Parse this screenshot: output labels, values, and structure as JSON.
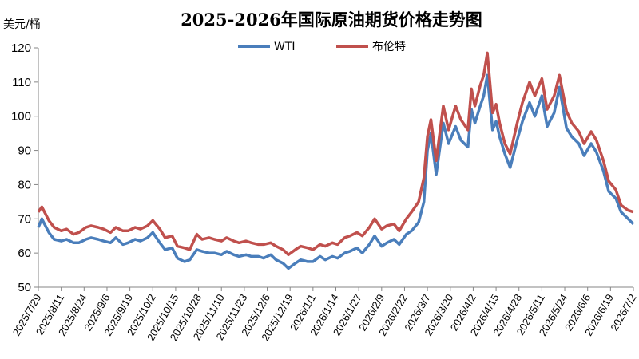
{
  "chart_data": {
    "type": "line",
    "title": "2025-2026年国际原油期货价格走势图",
    "ylabel": "美元/桶",
    "xlabel": "",
    "ylim": [
      50,
      120
    ],
    "yticks": [
      50,
      60,
      70,
      80,
      90,
      100,
      110,
      120
    ],
    "grid": false,
    "legend_position": "top",
    "xlim": [
      "2025-07-29",
      "2026-07-02"
    ],
    "x_tick_labels": [
      "2025/7/29",
      "2025/8/11",
      "2025/8/24",
      "2025/9/6",
      "2025/9/19",
      "2025/10/2",
      "2025/10/15",
      "2025/10/28",
      "2025/11/10",
      "2025/11/23",
      "2025/12/6",
      "2025/12/19",
      "2026/1/1",
      "2026/1/14",
      "2026/1/27",
      "2026/2/9",
      "2026/2/22",
      "2026/3/7",
      "2026/3/20",
      "2026/4/2",
      "2026/4/15",
      "2026/4/28",
      "2026/5/11",
      "2026/5/24",
      "2026/6/6",
      "2026/6/19",
      "2026/7/2"
    ],
    "x": [
      "2025-07-29",
      "2025-07-31",
      "2025-08-04",
      "2025-08-07",
      "2025-08-11",
      "2025-08-14",
      "2025-08-18",
      "2025-08-21",
      "2025-08-25",
      "2025-08-28",
      "2025-09-01",
      "2025-09-04",
      "2025-09-08",
      "2025-09-11",
      "2025-09-15",
      "2025-09-18",
      "2025-09-22",
      "2025-09-25",
      "2025-09-29",
      "2025-10-02",
      "2025-10-06",
      "2025-10-09",
      "2025-10-13",
      "2025-10-16",
      "2025-10-20",
      "2025-10-23",
      "2025-10-27",
      "2025-10-30",
      "2025-11-03",
      "2025-11-06",
      "2025-11-10",
      "2025-11-13",
      "2025-11-17",
      "2025-11-20",
      "2025-11-24",
      "2025-11-27",
      "2025-12-01",
      "2025-12-04",
      "2025-12-08",
      "2025-12-11",
      "2025-12-15",
      "2025-12-18",
      "2025-12-22",
      "2025-12-25",
      "2025-12-29",
      "2026-01-01",
      "2026-01-05",
      "2026-01-08",
      "2026-01-12",
      "2026-01-15",
      "2026-01-19",
      "2026-01-22",
      "2026-01-26",
      "2026-01-29",
      "2026-02-02",
      "2026-02-05",
      "2026-02-09",
      "2026-02-12",
      "2026-02-16",
      "2026-02-19",
      "2026-02-23",
      "2026-02-26",
      "2026-03-02",
      "2026-03-05",
      "2026-03-07",
      "2026-03-09",
      "2026-03-12",
      "2026-03-16",
      "2026-03-19",
      "2026-03-23",
      "2026-03-26",
      "2026-03-30",
      "2026-04-01",
      "2026-04-03",
      "2026-04-06",
      "2026-04-08",
      "2026-04-10",
      "2026-04-13",
      "2026-04-15",
      "2026-04-17",
      "2026-04-20",
      "2026-04-23",
      "2026-04-27",
      "2026-04-30",
      "2026-05-04",
      "2026-05-07",
      "2026-05-11",
      "2026-05-14",
      "2026-05-18",
      "2026-05-21",
      "2026-05-25",
      "2026-05-28",
      "2026-06-01",
      "2026-06-04",
      "2026-06-08",
      "2026-06-11",
      "2026-06-15",
      "2026-06-18",
      "2026-06-22",
      "2026-06-25",
      "2026-06-29",
      "2026-07-02"
    ],
    "series": [
      {
        "name": "WTI",
        "color": "#4a7ebb",
        "values": [
          67.5,
          70.0,
          66.0,
          64.0,
          63.5,
          64.0,
          63.0,
          63.0,
          64.0,
          64.5,
          64.0,
          63.5,
          63.0,
          64.5,
          62.5,
          63.0,
          64.0,
          63.5,
          64.5,
          66.0,
          63.0,
          61.0,
          61.5,
          58.5,
          57.5,
          58.0,
          61.0,
          60.5,
          60.0,
          60.0,
          59.5,
          60.5,
          59.5,
          59.0,
          59.5,
          59.0,
          59.0,
          58.5,
          59.5,
          58.0,
          57.0,
          55.5,
          57.0,
          58.0,
          57.5,
          57.5,
          59.0,
          58.0,
          59.0,
          58.5,
          60.0,
          60.5,
          61.5,
          60.0,
          62.5,
          65.0,
          62.0,
          63.0,
          64.0,
          62.5,
          65.5,
          66.5,
          69.0,
          75.0,
          90.0,
          95.0,
          83.0,
          98.0,
          92.0,
          97.0,
          93.0,
          91.0,
          102.0,
          98.0,
          103.0,
          106.0,
          112.0,
          96.0,
          98.5,
          94.0,
          89.0,
          85.0,
          93.0,
          98.5,
          104.0,
          100.0,
          106.0,
          97.0,
          101.0,
          108.5,
          96.5,
          94.0,
          92.0,
          88.5,
          92.0,
          89.5,
          84.0,
          78.0,
          76.0,
          72.0,
          70.0,
          68.5
        ]
      },
      {
        "name": "布伦特",
        "color": "#c0504d",
        "values": [
          72.0,
          73.5,
          69.5,
          67.5,
          66.5,
          67.0,
          65.5,
          66.0,
          67.5,
          68.0,
          67.5,
          67.0,
          66.0,
          67.5,
          66.5,
          66.5,
          67.5,
          67.0,
          68.0,
          69.5,
          67.0,
          64.5,
          65.0,
          62.0,
          61.5,
          61.0,
          65.5,
          64.0,
          64.5,
          64.0,
          63.5,
          64.5,
          63.5,
          63.0,
          63.5,
          63.0,
          62.5,
          62.5,
          63.0,
          62.0,
          61.0,
          59.5,
          61.0,
          62.0,
          61.5,
          61.0,
          62.5,
          62.0,
          63.0,
          62.5,
          64.5,
          65.0,
          66.0,
          65.0,
          67.5,
          70.0,
          67.0,
          68.0,
          68.5,
          66.5,
          70.0,
          72.0,
          75.0,
          82.0,
          94.0,
          99.0,
          87.0,
          103.0,
          96.0,
          103.0,
          99.0,
          96.0,
          108.0,
          103.0,
          109.0,
          112.0,
          118.5,
          101.0,
          103.5,
          98.0,
          92.0,
          89.0,
          98.0,
          104.0,
          110.0,
          106.0,
          111.0,
          102.0,
          106.0,
          112.0,
          101.5,
          98.0,
          95.5,
          92.0,
          95.5,
          93.0,
          87.0,
          81.0,
          78.5,
          74.0,
          72.5,
          72.0
        ]
      }
    ]
  }
}
